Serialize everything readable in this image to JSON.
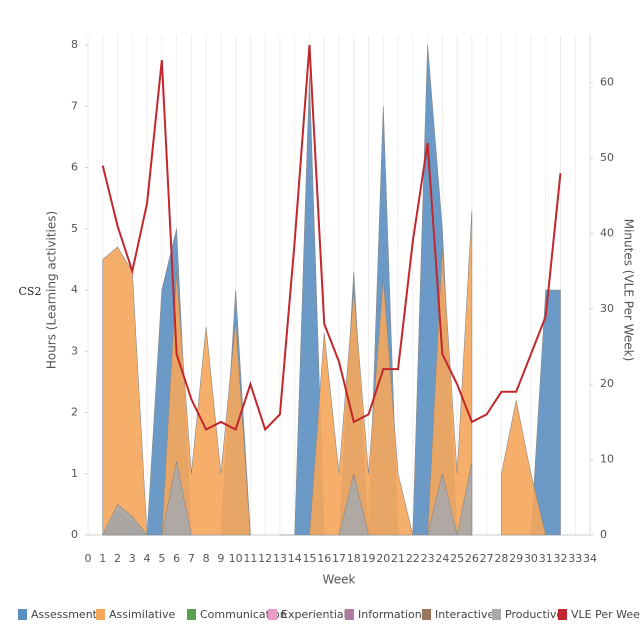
{
  "chart_data": {
    "type": "area",
    "side_label": "CS2",
    "x_label": "Week",
    "y_label": "Hours (Learning activities)",
    "y2_label": "Minutes (VLE Per Week)",
    "x": [
      1,
      2,
      3,
      4,
      5,
      6,
      7,
      8,
      9,
      10,
      11,
      12,
      13,
      14,
      15,
      16,
      17,
      18,
      19,
      20,
      21,
      22,
      23,
      24,
      25,
      26,
      27,
      28,
      29,
      30,
      31,
      32
    ],
    "xlim": [
      0,
      34
    ],
    "xticks": [
      0,
      1,
      2,
      3,
      4,
      5,
      6,
      7,
      8,
      9,
      10,
      11,
      12,
      13,
      14,
      15,
      16,
      17,
      18,
      19,
      20,
      21,
      22,
      23,
      24,
      25,
      26,
      27,
      28,
      29,
      30,
      31,
      32,
      33,
      34
    ],
    "ylim": [
      0,
      8
    ],
    "yticks": [
      0,
      1,
      2,
      3,
      4,
      5,
      6,
      7,
      8
    ],
    "y2lim": [
      0,
      65
    ],
    "y2ticks": [
      0,
      10,
      20,
      30,
      40,
      50,
      60
    ],
    "grid": true,
    "legend": "bottom",
    "series": [
      {
        "name": "Assessment",
        "color": "#5b8fc0",
        "values": [
          null,
          null,
          null,
          0,
          4,
          5,
          0,
          0,
          0,
          4,
          0,
          null,
          0,
          0,
          7.5,
          0,
          0,
          4.3,
          0,
          7,
          0,
          0,
          8,
          5,
          0,
          0,
          null,
          null,
          null,
          0,
          4,
          4
        ]
      },
      {
        "name": "Assimilative",
        "color": "#f5a65b",
        "values": [
          4.5,
          4.7,
          4.3,
          0,
          0,
          4.3,
          1,
          3.4,
          1,
          3.5,
          0,
          null,
          null,
          null,
          0,
          3.3,
          1,
          4,
          1,
          4.2,
          1,
          0,
          0,
          4.7,
          1,
          5.3,
          null,
          1,
          2.2,
          1,
          0,
          null
        ]
      },
      {
        "name": "Communication",
        "color": "#59a14f",
        "values": [
          null,
          null,
          null,
          null,
          null,
          null,
          null,
          null,
          null,
          null,
          null,
          null,
          null,
          null,
          null,
          null,
          null,
          null,
          null,
          null,
          null,
          null,
          null,
          null,
          null,
          null,
          null,
          null,
          null,
          null,
          null,
          null
        ]
      },
      {
        "name": "Experiential",
        "color": "#e89cc6",
        "values": [
          null,
          null,
          null,
          null,
          null,
          null,
          null,
          null,
          null,
          null,
          null,
          null,
          null,
          null,
          null,
          null,
          null,
          null,
          null,
          null,
          null,
          null,
          null,
          null,
          null,
          null,
          null,
          null,
          null,
          null,
          null,
          null
        ]
      },
      {
        "name": "Information",
        "color": "#b07aa1",
        "values": [
          null,
          null,
          null,
          null,
          null,
          null,
          null,
          null,
          null,
          null,
          null,
          null,
          null,
          null,
          null,
          null,
          null,
          null,
          null,
          null,
          null,
          null,
          null,
          null,
          null,
          null,
          null,
          null,
          null,
          null,
          null,
          null
        ]
      },
      {
        "name": "Interactive",
        "color": "#9d7660",
        "values": [
          0,
          0.4,
          0.2,
          0,
          null,
          null,
          null,
          null,
          null,
          null,
          null,
          null,
          null,
          null,
          null,
          null,
          null,
          null,
          null,
          null,
          null,
          null,
          null,
          null,
          null,
          null,
          null,
          null,
          null,
          null,
          null,
          null
        ]
      },
      {
        "name": "Productive",
        "color": "#aaaaaa",
        "values": [
          0,
          0.5,
          0.3,
          0,
          0,
          1.2,
          0,
          null,
          null,
          null,
          null,
          null,
          null,
          null,
          null,
          null,
          0,
          1,
          0,
          null,
          null,
          null,
          0,
          1,
          0,
          1.2,
          null,
          null,
          null,
          null,
          null,
          null
        ]
      },
      {
        "name": "VLE Per Week",
        "color": "#c0282e",
        "axis": "y2",
        "type": "line",
        "values": [
          49,
          41,
          35,
          44,
          63,
          24,
          18,
          14,
          15,
          14,
          20,
          14,
          16,
          39,
          65,
          28,
          23,
          15,
          16,
          22,
          22,
          39,
          52,
          24,
          20,
          15,
          16,
          19,
          19,
          24,
          29,
          48
        ]
      }
    ]
  }
}
